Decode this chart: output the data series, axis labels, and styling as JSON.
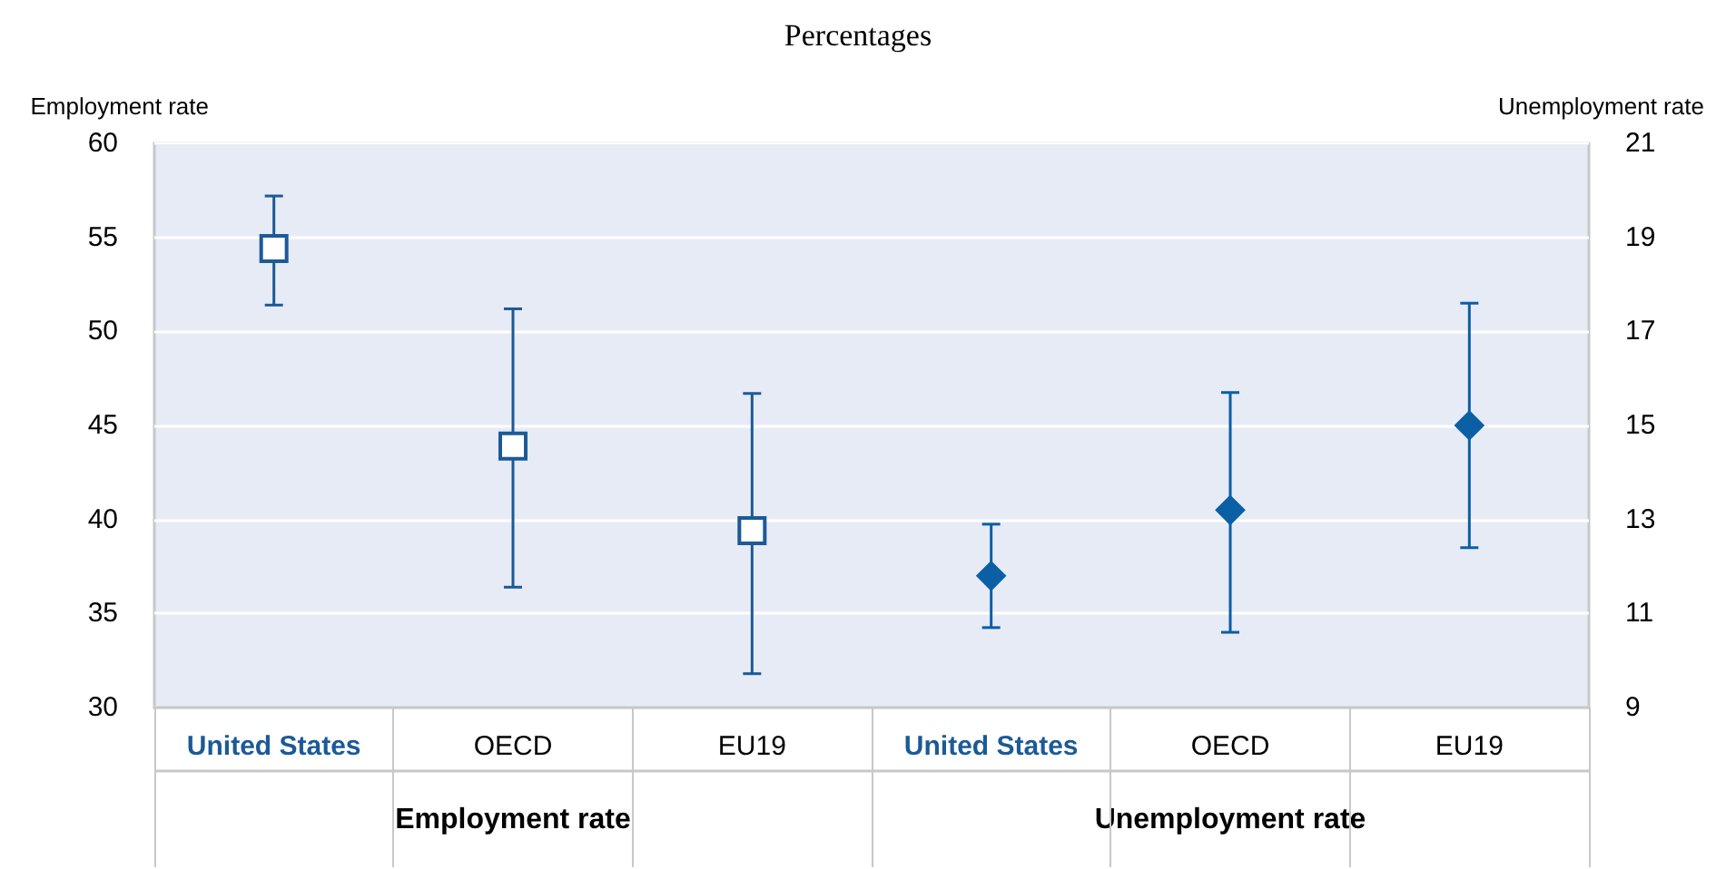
{
  "chart_data": {
    "type": "scatter",
    "title": "Percentages",
    "ylabel": "Employment rate",
    "y2label": "Unemployment rate",
    "categories": [
      "United States",
      "OECD",
      "EU19",
      "United States",
      "OECD",
      "EU19"
    ],
    "annotations": [
      "Employment rate",
      "Unemployment rate"
    ],
    "series": [
      {
        "color": "#1c5a96",
        "marker": "square",
        "values": [
          54.4,
          43.9,
          39.4,
          null,
          null,
          null
        ],
        "errors": [
          [
            51.4,
            57.2
          ],
          [
            36.4,
            51.2
          ],
          [
            31.8,
            46.7
          ],
          null,
          null,
          null
        ]
      },
      {
        "color": "#0b5fa5",
        "marker": "diamond",
        "axis": "y2",
        "values": [
          null,
          null,
          null,
          11.8,
          13.2,
          15.0
        ],
        "errors": [
          null,
          null,
          null,
          [
            10.7,
            12.9
          ],
          [
            10.6,
            15.7
          ],
          [
            12.4,
            17.6
          ]
        ]
      }
    ],
    "ylim": [
      30,
      60
    ],
    "yticks": [
      30,
      35,
      40,
      45,
      50,
      55,
      60
    ],
    "y2lim": [
      9,
      21
    ],
    "y2ticks": [
      9,
      11,
      13,
      15,
      17,
      19,
      21
    ],
    "grid": "y"
  }
}
